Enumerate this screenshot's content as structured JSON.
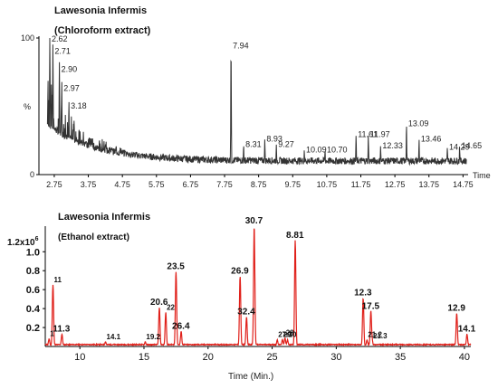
{
  "chart_data": [
    {
      "type": "line",
      "title": "Lawesonia Infermis",
      "subtitle": "(Chloroform extract)",
      "xlabel": "Time",
      "ylabel": "%",
      "xlim": [
        2.3,
        14.9
      ],
      "ylim": [
        0,
        100
      ],
      "xticks": [
        "2.75",
        "3.75",
        "4.75",
        "5.75",
        "6.75",
        "7.75",
        "8.75",
        "9.75",
        "10.75",
        "11.75",
        "12.75",
        "13.75",
        "14.75"
      ],
      "yticks": [
        "100",
        "0"
      ],
      "color": "#333333",
      "grid": false,
      "peaks": [
        {
          "label": "2.62",
          "x": 2.62,
          "y": 96
        },
        {
          "label": "2.71",
          "x": 2.71,
          "y": 87
        },
        {
          "label": "2.90",
          "x": 2.9,
          "y": 74
        },
        {
          "label": "2.97",
          "x": 2.97,
          "y": 60
        },
        {
          "label": "3.18",
          "x": 3.18,
          "y": 47
        },
        {
          "label": "7.94",
          "x": 7.94,
          "y": 91
        },
        {
          "label": "8.31",
          "x": 8.31,
          "y": 19
        },
        {
          "label": "8.93",
          "x": 8.93,
          "y": 23
        },
        {
          "label": "9.27",
          "x": 9.27,
          "y": 19
        },
        {
          "label": "10.09",
          "x": 10.09,
          "y": 15
        },
        {
          "label": "10.70",
          "x": 10.7,
          "y": 15
        },
        {
          "label": "11.61",
          "x": 11.61,
          "y": 26
        },
        {
          "label": "11.97",
          "x": 11.97,
          "y": 26
        },
        {
          "label": "12.33",
          "x": 12.33,
          "y": 18
        },
        {
          "label": "13.09",
          "x": 13.09,
          "y": 34
        },
        {
          "label": "13.46",
          "x": 13.46,
          "y": 23
        },
        {
          "label": "14.29",
          "x": 14.29,
          "y": 17
        },
        {
          "label": "14.65",
          "x": 14.65,
          "y": 18
        }
      ]
    },
    {
      "type": "line",
      "title": "Lawesonia Infermis",
      "subtitle": "(Ethanol extract)",
      "xlabel": "Time (Min.)",
      "ylabel": "",
      "ylabel_scale": "1.2x10",
      "ylabel_exp": "6",
      "xlim": [
        7.3,
        40.5
      ],
      "ylim": [
        0,
        1.27
      ],
      "xticks": [
        {
          "v": 10,
          "t": "10"
        },
        {
          "v": 15,
          "t": "15"
        },
        {
          "v": 20,
          "t": "20"
        },
        {
          "v": 25,
          "t": "25"
        },
        {
          "v": 30,
          "t": "30"
        },
        {
          "v": 35,
          "t": "35"
        },
        {
          "v": 40,
          "t": "40"
        }
      ],
      "yticks": [
        {
          "v": 0.2,
          "t": "0.2"
        },
        {
          "v": 0.4,
          "t": "0.4"
        },
        {
          "v": 0.6,
          "t": "0.6"
        },
        {
          "v": 0.8,
          "t": "0.8"
        },
        {
          "v": 1.0,
          "t": "1.0"
        }
      ],
      "color": "#e0201a",
      "grid": false,
      "peaks": [
        {
          "label": "1",
          "x": 7.6,
          "y": 0.07
        },
        {
          "label": "11",
          "x": 7.9,
          "y": 0.64
        },
        {
          "label": "11.3",
          "x": 8.6,
          "y": 0.12
        },
        {
          "label": "14.1",
          "x": 12.0,
          "y": 0.04
        },
        {
          "label": "19.2",
          "x": 15.1,
          "y": 0.04
        },
        {
          "label": "20.6",
          "x": 16.2,
          "y": 0.4
        },
        {
          "label": "22",
          "x": 16.7,
          "y": 0.35
        },
        {
          "label": "23.5",
          "x": 17.5,
          "y": 0.78
        },
        {
          "label": "26.4",
          "x": 17.9,
          "y": 0.15
        },
        {
          "label": "26.9",
          "x": 22.5,
          "y": 0.73
        },
        {
          "label": "32.4",
          "x": 23.0,
          "y": 0.3
        },
        {
          "label": "30.7",
          "x": 23.6,
          "y": 1.26
        },
        {
          "label": "27.1",
          "x": 25.4,
          "y": 0.06
        },
        {
          "label": "29",
          "x": 25.8,
          "y": 0.06
        },
        {
          "label": "28",
          "x": 26.0,
          "y": 0.08
        },
        {
          "label": "30",
          "x": 26.2,
          "y": 0.06
        },
        {
          "label": "8.81",
          "x": 26.8,
          "y": 1.11
        },
        {
          "label": "12.3",
          "x": 32.1,
          "y": 0.5
        },
        {
          "label": "21.2",
          "x": 32.4,
          "y": 0.06
        },
        {
          "label": "21.3",
          "x": 32.8,
          "y": 0.05
        },
        {
          "label": "17.5",
          "x": 32.7,
          "y": 0.36
        },
        {
          "label": "12.9",
          "x": 39.4,
          "y": 0.34
        },
        {
          "label": "14.1",
          "x": 40.2,
          "y": 0.12
        }
      ]
    }
  ]
}
